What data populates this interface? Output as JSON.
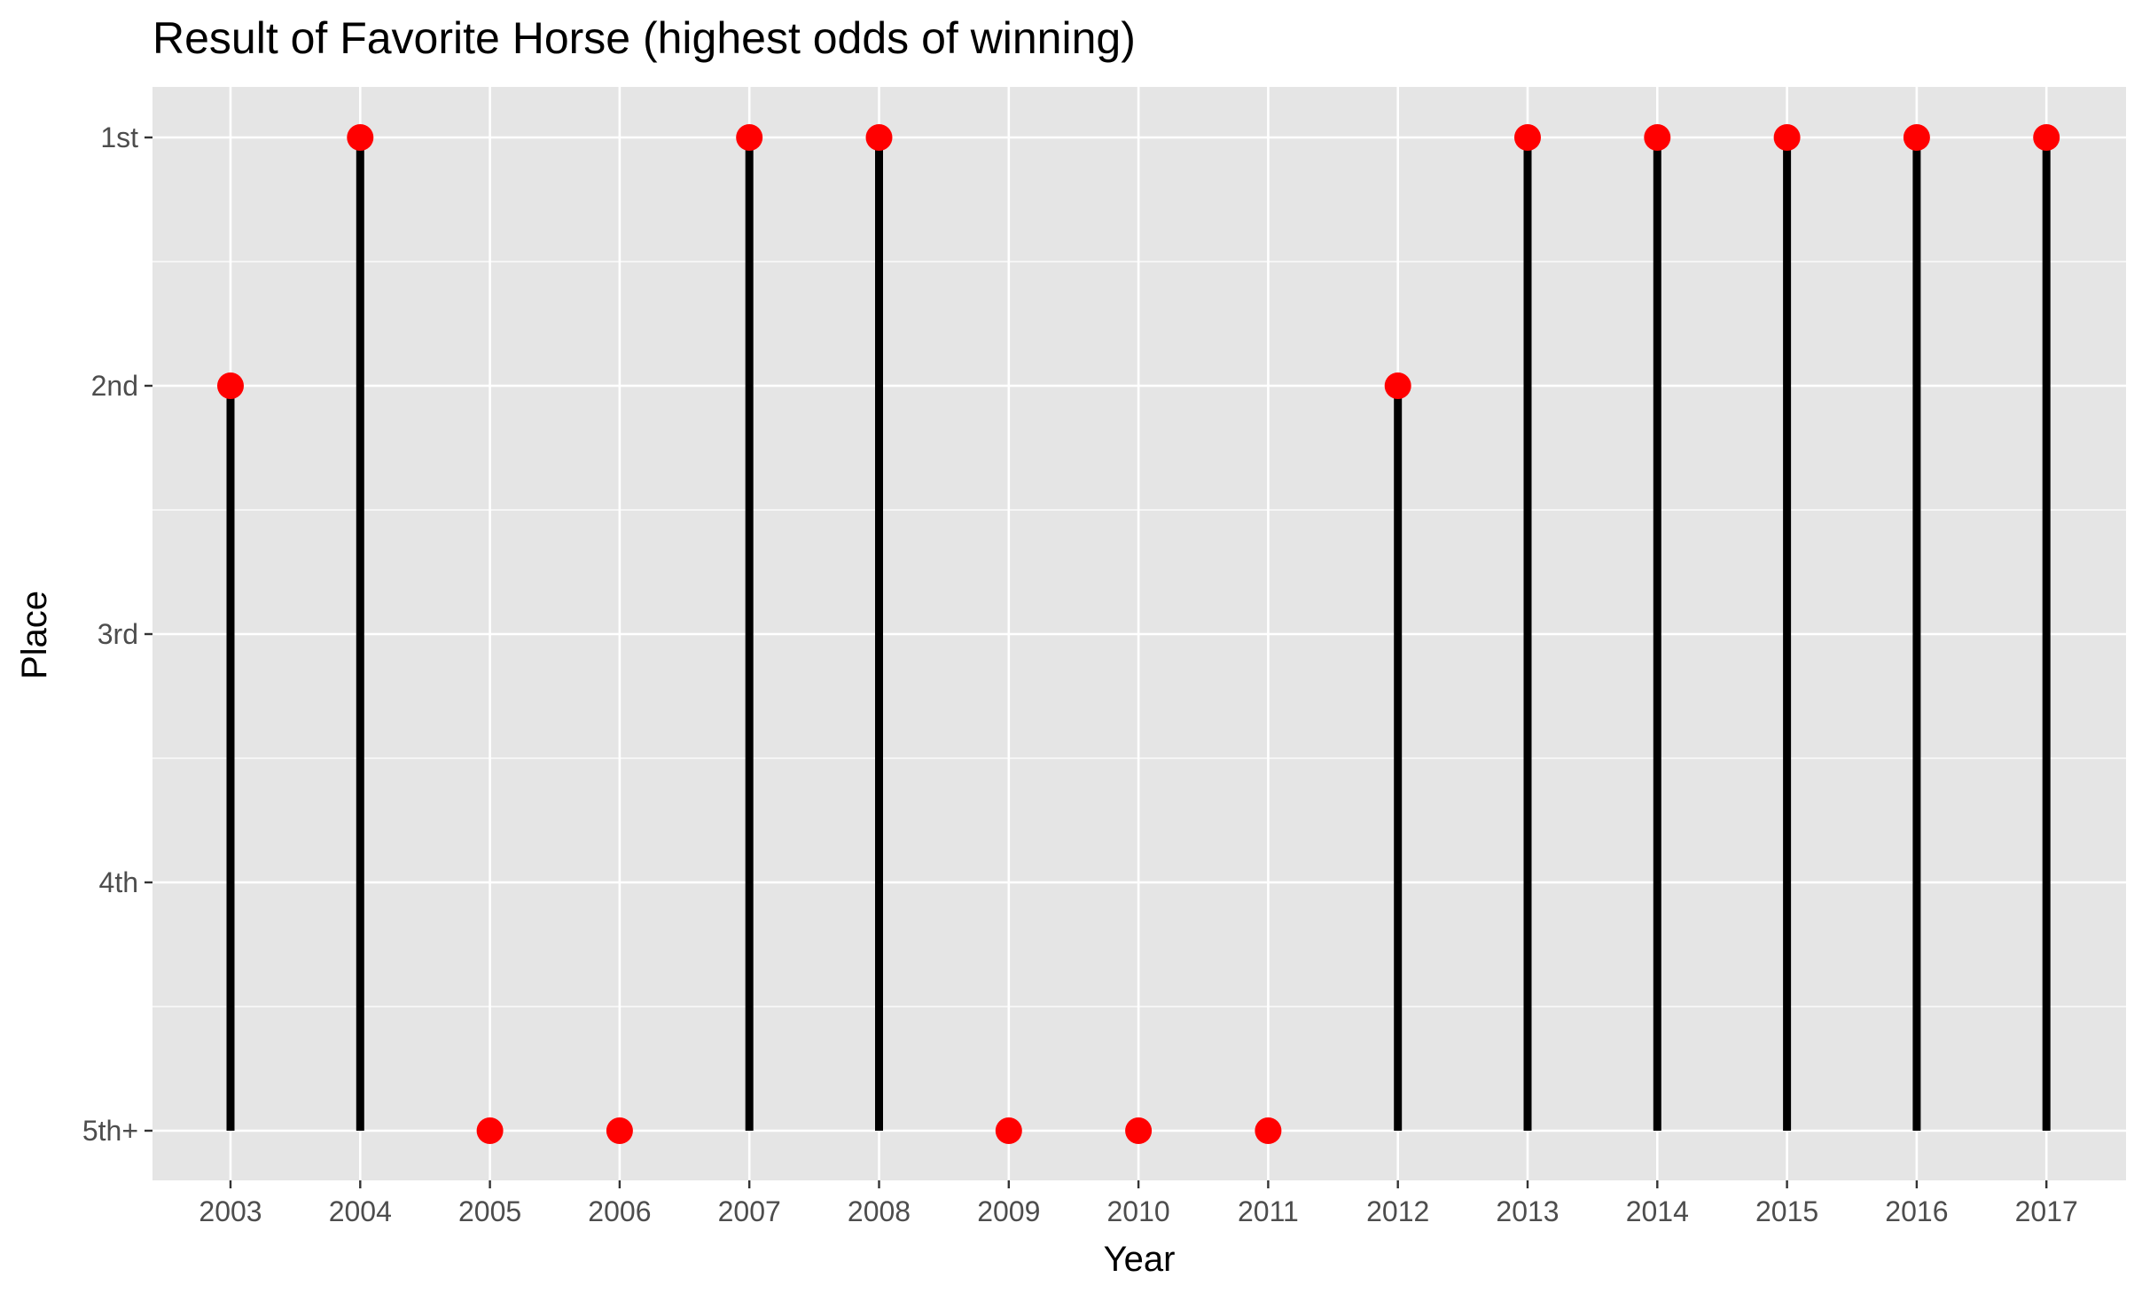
{
  "chart_data": {
    "type": "lollipop",
    "title": "Result of Favorite Horse (highest odds of winning)",
    "xlabel": "Year",
    "ylabel": "Place",
    "x": [
      2003,
      2004,
      2005,
      2006,
      2007,
      2008,
      2009,
      2010,
      2011,
      2012,
      2013,
      2014,
      2015,
      2016,
      2017
    ],
    "x_tick_labels": [
      "2003",
      "2004",
      "2005",
      "2006",
      "2007",
      "2008",
      "2009",
      "2010",
      "2011",
      "2012",
      "2013",
      "2014",
      "2015",
      "2016",
      "2017"
    ],
    "y_categories": [
      "1st",
      "2nd",
      "3rd",
      "4th",
      "5th+"
    ],
    "y_rank": [
      2,
      1,
      5,
      5,
      1,
      1,
      5,
      5,
      5,
      2,
      1,
      1,
      1,
      1,
      1
    ],
    "y_labels": [
      "2nd",
      "1st",
      "5th+",
      "5th+",
      "1st",
      "1st",
      "5th+",
      "5th+",
      "5th+",
      "2nd",
      "1st",
      "1st",
      "1st",
      "1st",
      "1st"
    ],
    "baseline": "5th+",
    "ylim": [
      5,
      1
    ],
    "grid": true,
    "legend": "none",
    "colors": {
      "panel_background": "#e5e5e5",
      "grid": "#ffffff",
      "stem": "#000000",
      "point": "#ff0000",
      "tick_text": "#4d4d4d"
    }
  }
}
